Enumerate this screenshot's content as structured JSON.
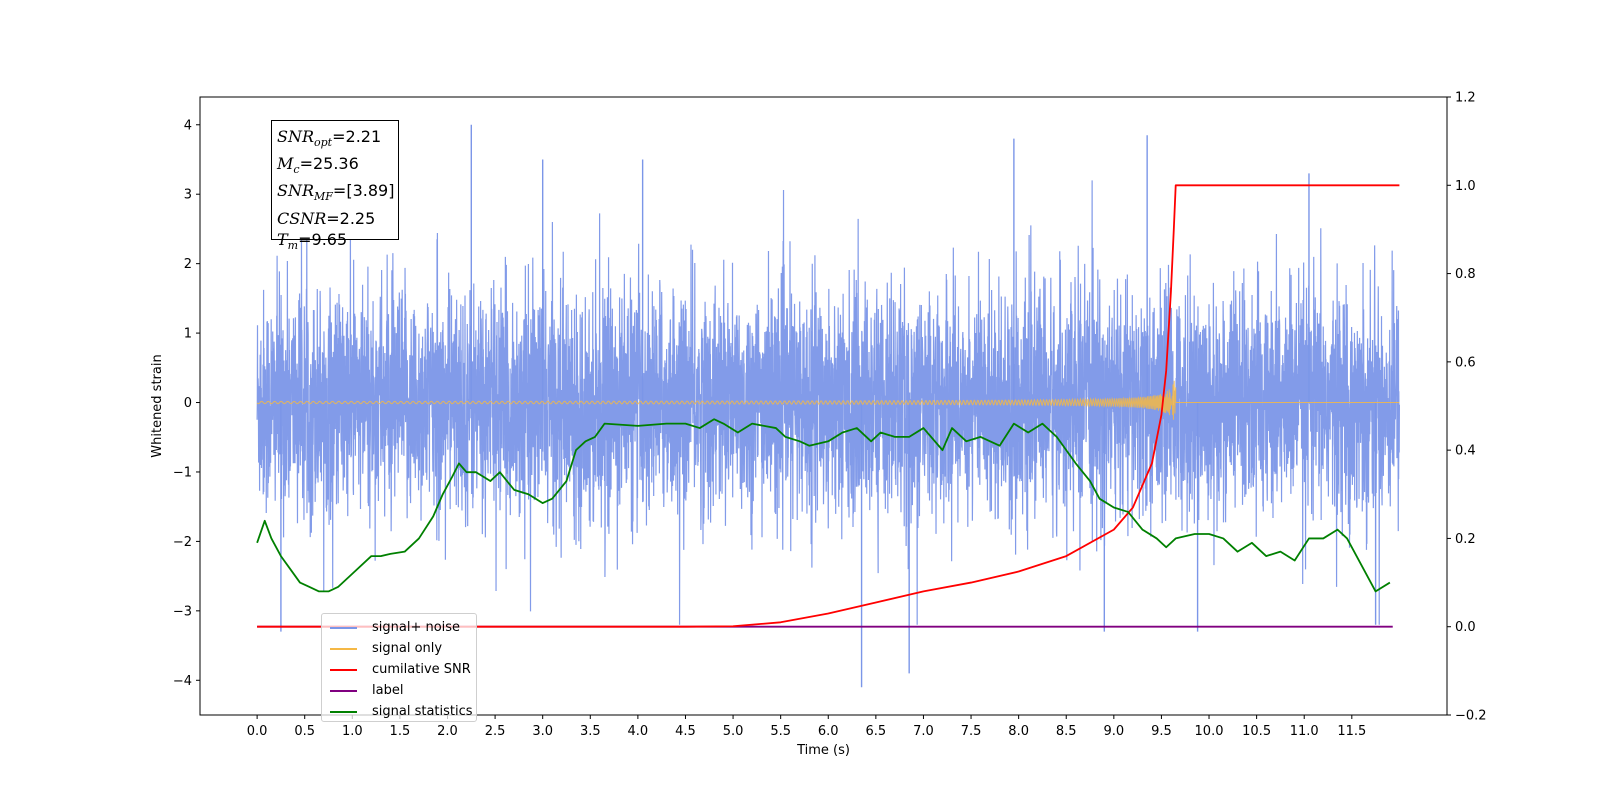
{
  "chart_data": {
    "type": "line",
    "xlabel": "Time (s)",
    "ylabel": "Whitened strain",
    "xlim": [
      -0.6,
      12.5
    ],
    "ylim": [
      -4.5,
      4.4
    ],
    "y2lim": [
      -0.2,
      1.2
    ],
    "x_ticks": [
      0.0,
      0.5,
      1.0,
      1.5,
      2.0,
      2.5,
      3.0,
      3.5,
      4.0,
      4.5,
      5.0,
      5.5,
      6.0,
      6.5,
      7.0,
      7.5,
      8.0,
      8.5,
      9.0,
      9.5,
      10.0,
      10.5,
      11.0,
      11.5
    ],
    "x_tick_labels": [
      "0.0",
      "0.5",
      "1.0",
      "1.5",
      "2.0",
      "2.5",
      "3.0",
      "3.5",
      "4.0",
      "4.5",
      "5.0",
      "5.5",
      "6.0",
      "6.5",
      "7.0",
      "7.5",
      "8.0",
      "8.5",
      "9.0",
      "9.5",
      "10.0",
      "10.5",
      "11.0",
      "11.5"
    ],
    "y_ticks": [
      -4,
      -3,
      -2,
      -1,
      0,
      1,
      2,
      3,
      4
    ],
    "y_tick_labels": [
      "−4",
      "−3",
      "−2",
      "−1",
      "0",
      "1",
      "2",
      "3",
      "4"
    ],
    "y2_ticks": [
      -0.2,
      0.0,
      0.2,
      0.4,
      0.6,
      0.8,
      1.0,
      1.2
    ],
    "y2_tick_labels": [
      "−0.2",
      "0.0",
      "0.2",
      "0.4",
      "0.6",
      "0.8",
      "1.0",
      "1.2"
    ],
    "grid": false,
    "legend_position": "bottom-left",
    "annotation": {
      "snr_opt": "=2.21",
      "mc": "=25.36",
      "snr_mf": "=[3.89]",
      "csnr": "=2.25",
      "tm": "=9.65"
    },
    "series": [
      {
        "name": "signal+ noise",
        "axis": "left",
        "color": "#7b96e8",
        "t_start": 0.0,
        "t_end": 12.0,
        "noise_std": 0.8,
        "peaks": [
          {
            "x": 2.25,
            "y": 4.0
          },
          {
            "x": 9.35,
            "y": 3.85
          },
          {
            "x": 3.0,
            "y": 3.5
          },
          {
            "x": 4.05,
            "y": 3.5
          },
          {
            "x": 7.95,
            "y": 3.8
          },
          {
            "x": 11.05,
            "y": 3.3
          },
          {
            "x": 6.35,
            "y": -4.1
          },
          {
            "x": 6.85,
            "y": -3.9
          },
          {
            "x": 0.25,
            "y": -3.3
          },
          {
            "x": 8.9,
            "y": -3.3
          },
          {
            "x": 9.88,
            "y": -3.3
          },
          {
            "x": 11.75,
            "y": -3.2
          }
        ]
      },
      {
        "name": "signal only",
        "axis": "left",
        "color": "#f5b845",
        "t_start": 0.0,
        "t_end": 12.0,
        "merger_time": 9.65,
        "peak_amplitude": 0.45
      },
      {
        "name": "cumilative SNR",
        "axis": "right",
        "color": "#ff0000",
        "x": [
          0.0,
          4.5,
          5.0,
          5.5,
          6.0,
          6.5,
          7.0,
          7.5,
          8.0,
          8.5,
          9.0,
          9.2,
          9.4,
          9.5,
          9.55,
          9.6,
          9.63,
          9.65,
          12.0
        ],
        "y": [
          0.0,
          0.0,
          0.001,
          0.01,
          0.03,
          0.055,
          0.08,
          0.1,
          0.125,
          0.16,
          0.22,
          0.27,
          0.37,
          0.48,
          0.58,
          0.76,
          0.9,
          1.0,
          1.0
        ]
      },
      {
        "name": "label",
        "axis": "right",
        "color": "#800080",
        "x": [
          0.0,
          11.93
        ],
        "y": [
          0.0,
          0.0
        ]
      },
      {
        "name": "signal statistics",
        "axis": "right",
        "color": "#008000",
        "x": [
          0.0,
          0.08,
          0.15,
          0.25,
          0.35,
          0.45,
          0.55,
          0.65,
          0.75,
          0.85,
          1.0,
          1.2,
          1.3,
          1.4,
          1.55,
          1.7,
          1.85,
          1.95,
          2.05,
          2.12,
          2.2,
          2.3,
          2.45,
          2.55,
          2.7,
          2.85,
          3.0,
          3.1,
          3.25,
          3.35,
          3.45,
          3.55,
          3.65,
          4.0,
          4.3,
          4.5,
          4.65,
          4.8,
          4.9,
          5.05,
          5.2,
          5.45,
          5.55,
          5.7,
          5.8,
          6.0,
          6.15,
          6.3,
          6.45,
          6.55,
          6.7,
          6.85,
          7.0,
          7.2,
          7.3,
          7.45,
          7.6,
          7.8,
          7.95,
          8.1,
          8.25,
          8.4,
          8.6,
          8.75,
          8.85,
          9.0,
          9.15,
          9.3,
          9.45,
          9.55,
          9.65,
          9.85,
          10.0,
          10.15,
          10.3,
          10.45,
          10.6,
          10.75,
          10.9,
          11.05,
          11.2,
          11.35,
          11.45,
          11.6,
          11.75,
          11.9
        ],
        "y": [
          0.19,
          0.24,
          0.2,
          0.16,
          0.13,
          0.1,
          0.09,
          0.08,
          0.08,
          0.09,
          0.12,
          0.16,
          0.16,
          0.165,
          0.17,
          0.2,
          0.25,
          0.3,
          0.34,
          0.37,
          0.35,
          0.35,
          0.33,
          0.35,
          0.31,
          0.3,
          0.28,
          0.29,
          0.33,
          0.4,
          0.42,
          0.43,
          0.46,
          0.455,
          0.46,
          0.46,
          0.45,
          0.47,
          0.46,
          0.44,
          0.46,
          0.45,
          0.43,
          0.42,
          0.41,
          0.42,
          0.44,
          0.45,
          0.42,
          0.44,
          0.43,
          0.43,
          0.45,
          0.4,
          0.45,
          0.42,
          0.43,
          0.41,
          0.46,
          0.44,
          0.46,
          0.43,
          0.37,
          0.33,
          0.29,
          0.27,
          0.26,
          0.22,
          0.2,
          0.18,
          0.2,
          0.21,
          0.21,
          0.2,
          0.17,
          0.19,
          0.16,
          0.17,
          0.15,
          0.2,
          0.2,
          0.22,
          0.2,
          0.14,
          0.08,
          0.1
        ]
      }
    ]
  },
  "legend": [
    {
      "label": "signal+ noise",
      "color": "#7b96e8"
    },
    {
      "label": "signal only",
      "color": "#f5b845"
    },
    {
      "label": "cumilative SNR",
      "color": "#ff0000"
    },
    {
      "label": "label",
      "color": "#800080"
    },
    {
      "label": "signal statistics",
      "color": "#008000"
    }
  ]
}
